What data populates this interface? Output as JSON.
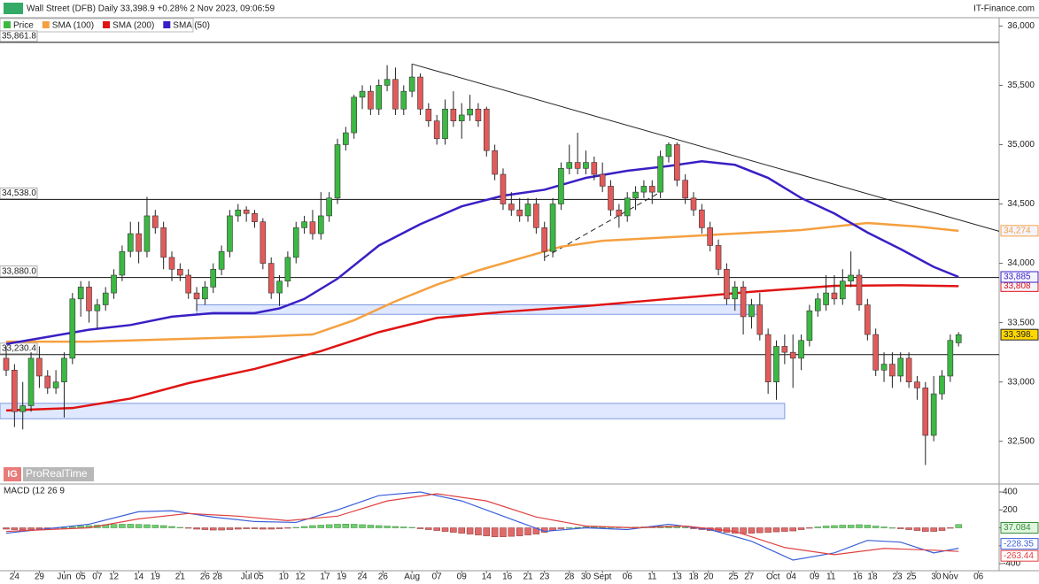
{
  "chart_data": {
    "type": "candlestick",
    "title": "Wall Street (DFB) Daily 33,398.9 +0.28% 2 Nov 2023, 09:06:59",
    "source": "IT-Finance.com",
    "price_name": "Price",
    "watermark_logo": "IG",
    "watermark": "ProRealTime",
    "up_color": "#3cb843",
    "down_color": "#e35a5a",
    "xlim": [
      -0.75,
      119.9
    ],
    "xticks": [
      {
        "value": 1,
        "label": "24"
      },
      {
        "value": 4,
        "label": "29"
      },
      {
        "value": 7,
        "label": "Jun"
      },
      {
        "value": 9,
        "label": "05"
      },
      {
        "value": 11,
        "label": "07"
      },
      {
        "value": 13,
        "label": "12"
      },
      {
        "value": 16,
        "label": "14"
      },
      {
        "value": 18,
        "label": "19"
      },
      {
        "value": 21,
        "label": "21"
      },
      {
        "value": 24,
        "label": "26"
      },
      {
        "value": 25.5,
        "label": "28"
      },
      {
        "value": 29,
        "label": "Jul"
      },
      {
        "value": 30.5,
        "label": "05"
      },
      {
        "value": 33.5,
        "label": "10"
      },
      {
        "value": 35.5,
        "label": "12"
      },
      {
        "value": 38.5,
        "label": "17"
      },
      {
        "value": 40.5,
        "label": "19"
      },
      {
        "value": 43,
        "label": "24"
      },
      {
        "value": 45.5,
        "label": "26"
      },
      {
        "value": 49,
        "label": "Aug"
      },
      {
        "value": 52,
        "label": "07"
      },
      {
        "value": 55,
        "label": "09"
      },
      {
        "value": 58,
        "label": "14"
      },
      {
        "value": 60.5,
        "label": "16"
      },
      {
        "value": 63,
        "label": "21"
      },
      {
        "value": 65,
        "label": "23"
      },
      {
        "value": 68,
        "label": "28"
      },
      {
        "value": 70,
        "label": "30"
      },
      {
        "value": 72,
        "label": "Sept"
      },
      {
        "value": 75,
        "label": "06"
      },
      {
        "value": 78,
        "label": "11"
      },
      {
        "value": 81,
        "label": "13"
      },
      {
        "value": 83,
        "label": "18"
      },
      {
        "value": 84.8,
        "label": "20"
      },
      {
        "value": 87.8,
        "label": "25"
      },
      {
        "value": 89.7,
        "label": "27"
      },
      {
        "value": 92.6,
        "label": "Oct"
      },
      {
        "value": 94.8,
        "label": "04"
      },
      {
        "value": 97.6,
        "label": "09"
      },
      {
        "value": 99.6,
        "label": "11"
      },
      {
        "value": 102.8,
        "label": "16"
      },
      {
        "value": 104.6,
        "label": "18"
      },
      {
        "value": 107.6,
        "label": "23"
      },
      {
        "value": 109.3,
        "label": "25"
      },
      {
        "value": 112.3,
        "label": "30"
      },
      {
        "value": 114,
        "label": "Nov"
      },
      {
        "value": 117.4,
        "label": "06"
      }
    ],
    "ylim": [
      32140,
      36070
    ],
    "yticks": [
      {
        "value": 36000,
        "label": "36,000"
      },
      {
        "value": 35500,
        "label": "35,500"
      },
      {
        "value": 35000,
        "label": "35,000"
      },
      {
        "value": 34500,
        "label": "34,500"
      },
      {
        "value": 34000,
        "label": "34,000"
      },
      {
        "value": 33500,
        "label": "33,500"
      },
      {
        "value": 33000,
        "label": "33,000"
      },
      {
        "value": 32500,
        "label": "32,500"
      }
    ],
    "open": [
      33200,
      33100,
      32750,
      32800,
      33200,
      33050,
      32950,
      33000,
      33200,
      33700,
      33800,
      33600,
      33650,
      33750,
      33900,
      34100,
      34250,
      34100,
      34400,
      34300,
      34050,
      33950,
      33900,
      33750,
      33700,
      33800,
      33950,
      34100,
      34400,
      34450,
      34420,
      34350,
      34000,
      33750,
      33850,
      34050,
      34300,
      34350,
      34250,
      34400,
      34550,
      35000,
      35100,
      35400,
      35450,
      35300,
      35500,
      35550,
      35300,
      35450,
      35570,
      35300,
      35200,
      35050,
      35300,
      35200,
      35250,
      35300,
      35300,
      34950,
      34750,
      34500,
      34450,
      34400,
      34500,
      34300,
      34100,
      34500,
      34800,
      34850,
      34800,
      34850,
      34750,
      34650,
      34450,
      34400,
      34550,
      34600,
      34650,
      34600,
      34900,
      35000,
      34700,
      34550,
      34450,
      34300,
      34150,
      33950,
      33700,
      33800,
      33550,
      33650,
      33400,
      33000,
      33300,
      33250,
      33200,
      33350,
      33600,
      33650,
      33750,
      33700,
      33850,
      33900,
      33650,
      33400,
      33100,
      33150,
      33050,
      33200,
      33000,
      32950,
      32550,
      32900,
      33050,
      33330
    ],
    "high": [
      33300,
      33150,
      33000,
      33250,
      33300,
      33100,
      33100,
      33250,
      33750,
      33850,
      33850,
      33700,
      33800,
      33950,
      34150,
      34350,
      34350,
      34560,
      34450,
      34350,
      34100,
      34000,
      33950,
      33800,
      33850,
      34000,
      34150,
      34450,
      34500,
      34480,
      34450,
      34380,
      34050,
      33900,
      34100,
      34350,
      34400,
      34450,
      34600,
      34600,
      35050,
      35150,
      35420,
      35500,
      35500,
      35550,
      35670,
      35650,
      35500,
      35680,
      35600,
      35350,
      35250,
      35380,
      35450,
      35350,
      35420,
      35350,
      35320,
      35000,
      34800,
      34600,
      34550,
      34550,
      34550,
      34350,
      34550,
      34850,
      35000,
      35100,
      34950,
      34900,
      34850,
      34700,
      34500,
      34600,
      34650,
      34700,
      34700,
      34950,
      35020,
      35020,
      34750,
      34600,
      34500,
      34350,
      34200,
      34000,
      33850,
      33850,
      33700,
      33750,
      33450,
      33350,
      33400,
      33400,
      33400,
      33650,
      33750,
      33900,
      33900,
      33950,
      34100,
      33950,
      33700,
      33450,
      33250,
      33250,
      33250,
      33250,
      33050,
      33000,
      33050,
      33100,
      33400,
      33420
    ],
    "low": [
      33050,
      32620,
      32600,
      32750,
      32950,
      32900,
      32900,
      32700,
      33150,
      33550,
      33500,
      33450,
      33600,
      33700,
      33850,
      34050,
      34000,
      34050,
      34250,
      33950,
      33850,
      33850,
      33700,
      33600,
      33650,
      33750,
      33900,
      34050,
      34350,
      34350,
      34300,
      33950,
      33700,
      33640,
      33800,
      34000,
      34250,
      34200,
      34200,
      34350,
      34500,
      34950,
      35050,
      35300,
      35250,
      35250,
      35450,
      35250,
      35250,
      35400,
      35250,
      35150,
      35000,
      35000,
      35150,
      35050,
      35200,
      35150,
      34900,
      34700,
      34450,
      34400,
      34350,
      34350,
      34250,
      34020,
      34050,
      34450,
      34750,
      34750,
      34750,
      34700,
      34600,
      34400,
      34300,
      34350,
      34450,
      34550,
      34500,
      34550,
      34850,
      34650,
      34500,
      34400,
      34250,
      34100,
      33900,
      33650,
      33600,
      33400,
      33450,
      33350,
      32900,
      32850,
      33150,
      32950,
      33100,
      33300,
      33550,
      33600,
      33650,
      33650,
      33800,
      33600,
      33350,
      33050,
      33000,
      32950,
      33000,
      32950,
      32850,
      32300,
      32500,
      32850,
      33000,
      33300
    ],
    "close": [
      33100,
      32750,
      32800,
      33200,
      33050,
      32950,
      33000,
      33200,
      33700,
      33800,
      33600,
      33650,
      33750,
      33900,
      34100,
      34250,
      34100,
      34400,
      34300,
      34050,
      33950,
      33900,
      33750,
      33700,
      33800,
      33950,
      34100,
      34400,
      34450,
      34420,
      34350,
      34000,
      33750,
      33850,
      34050,
      34300,
      34350,
      34250,
      34400,
      34550,
      35000,
      35100,
      35400,
      35450,
      35300,
      35500,
      35550,
      35300,
      35450,
      35570,
      35300,
      35200,
      35050,
      35300,
      35200,
      35250,
      35300,
      35200,
      34950,
      34750,
      34500,
      34450,
      34400,
      34500,
      34300,
      34100,
      34500,
      34800,
      34850,
      34800,
      34850,
      34750,
      34650,
      34450,
      34400,
      34550,
      34600,
      34650,
      34600,
      34900,
      35000,
      34700,
      34550,
      34450,
      34300,
      34150,
      33950,
      33700,
      33800,
      33550,
      33650,
      33400,
      33000,
      33300,
      33250,
      33200,
      33350,
      33600,
      33700,
      33750,
      33700,
      33850,
      33900,
      33650,
      33400,
      33100,
      33150,
      33050,
      33200,
      33000,
      32950,
      32550,
      32900,
      33050,
      33350,
      33398.9
    ],
    "last_price": {
      "value": 33398.9,
      "label": "33,398."
    },
    "series": [
      {
        "name": "SMA (100)",
        "color": "#f5a040",
        "x": [
          0,
          10,
          20,
          30,
          37,
          42,
          47,
          52,
          57,
          62,
          67,
          72,
          80,
          88,
          96,
          104,
          110,
          115
        ],
        "values": [
          33340,
          33340,
          33360,
          33380,
          33400,
          33520,
          33680,
          33820,
          33940,
          34040,
          34140,
          34190,
          34220,
          34250,
          34280,
          34340,
          34310,
          34274
        ],
        "last_label": "34,274"
      },
      {
        "name": "SMA (200)",
        "color": "#e01414",
        "x": [
          0,
          8,
          15,
          22,
          30,
          38,
          45,
          52,
          60,
          70,
          80,
          90,
          100,
          108,
          115
        ],
        "values": [
          32760,
          32780,
          32860,
          32990,
          33110,
          33260,
          33420,
          33540,
          33590,
          33640,
          33700,
          33760,
          33810,
          33815,
          33808
        ],
        "last_label": "33,808"
      },
      {
        "name": "SMA (50)",
        "color": "#3a1fc4",
        "x": [
          0,
          5,
          10,
          15,
          20,
          25,
          30,
          33,
          36,
          40,
          45,
          50,
          55,
          60,
          65,
          70,
          75,
          80,
          84,
          88,
          92,
          96,
          100,
          104,
          108,
          112,
          115
        ],
        "values": [
          33320,
          33380,
          33440,
          33480,
          33550,
          33580,
          33580,
          33620,
          33700,
          33870,
          34150,
          34330,
          34480,
          34570,
          34620,
          34720,
          34780,
          34820,
          34860,
          34830,
          34720,
          34550,
          34420,
          34260,
          34120,
          33970,
          33885
        ],
        "last_label": "33,885"
      }
    ],
    "levels": [
      {
        "value": 35861.8,
        "label": "35,861.8"
      },
      {
        "value": 34538.0,
        "label": "34,538.0"
      },
      {
        "value": 33880.0,
        "label": "33,880.0"
      },
      {
        "value": 33230.4,
        "label": "33,230.4"
      }
    ],
    "trendlines": [
      {
        "x": [
          49,
          119.9
        ],
        "y": [
          35680,
          34270
        ],
        "style": "solid"
      },
      {
        "x": [
          65,
          79
        ],
        "y": [
          34050,
          34600
        ],
        "style": "dashed"
      }
    ],
    "zones": [
      {
        "x": [
          23,
          91
        ],
        "y": [
          33570,
          33650
        ]
      },
      {
        "x": [
          -0.75,
          94
        ],
        "y": [
          32690,
          32820
        ]
      }
    ],
    "macd": {
      "title": "MACD (12 26 9",
      "ylim": [
        -479,
        479
      ],
      "yticks": [
        400,
        200,
        0,
        -200,
        -400
      ],
      "histogram": [
        -15,
        -20,
        -25,
        -20,
        -15,
        -10,
        -5,
        0,
        10,
        20,
        25,
        30,
        35,
        38,
        40,
        40,
        38,
        35,
        30,
        25,
        15,
        5,
        -5,
        -15,
        -20,
        -25,
        -25,
        -20,
        -15,
        -10,
        -10,
        -15,
        -15,
        -10,
        -5,
        5,
        15,
        25,
        30,
        35,
        40,
        42,
        40,
        35,
        30,
        25,
        20,
        15,
        10,
        5,
        -10,
        -20,
        -30,
        -40,
        -50,
        -60,
        -70,
        -80,
        -90,
        -100,
        -100,
        -95,
        -90,
        -80,
        -70,
        -50,
        -30,
        -10,
        0,
        5,
        10,
        10,
        10,
        8,
        5,
        5,
        8,
        10,
        15,
        18,
        20,
        15,
        5,
        -10,
        -20,
        -30,
        -40,
        -50,
        -60,
        -65,
        -60,
        -55,
        -50,
        -45,
        -40,
        -35,
        -20,
        -5,
        10,
        20,
        25,
        30,
        30,
        35,
        30,
        20,
        10,
        0,
        -10,
        -20,
        -30,
        -40,
        -40,
        -30,
        -5,
        37.084
      ],
      "lines": [
        {
          "color": "#3a5fd8",
          "x": [
            0,
            10,
            16,
            20,
            25,
            30,
            35,
            40,
            45,
            50,
            55,
            60,
            65,
            70,
            75,
            80,
            85,
            90,
            95,
            100,
            104,
            108,
            112,
            115
          ],
          "values": [
            -60,
            40,
            180,
            190,
            120,
            70,
            60,
            200,
            360,
            400,
            300,
            130,
            -40,
            0,
            -20,
            40,
            -20,
            -150,
            -360,
            -280,
            -140,
            -160,
            -280,
            -228.35
          ]
        },
        {
          "color": "#e04040",
          "x": [
            0,
            10,
            16,
            22,
            28,
            34,
            40,
            46,
            52,
            58,
            64,
            70,
            76,
            82,
            88,
            94,
            100,
            106,
            112,
            115
          ],
          "values": [
            -40,
            0,
            100,
            160,
            130,
            80,
            130,
            300,
            380,
            300,
            120,
            20,
            0,
            20,
            -40,
            -220,
            -300,
            -230,
            -250,
            -263.44
          ]
        }
      ]
    }
  }
}
